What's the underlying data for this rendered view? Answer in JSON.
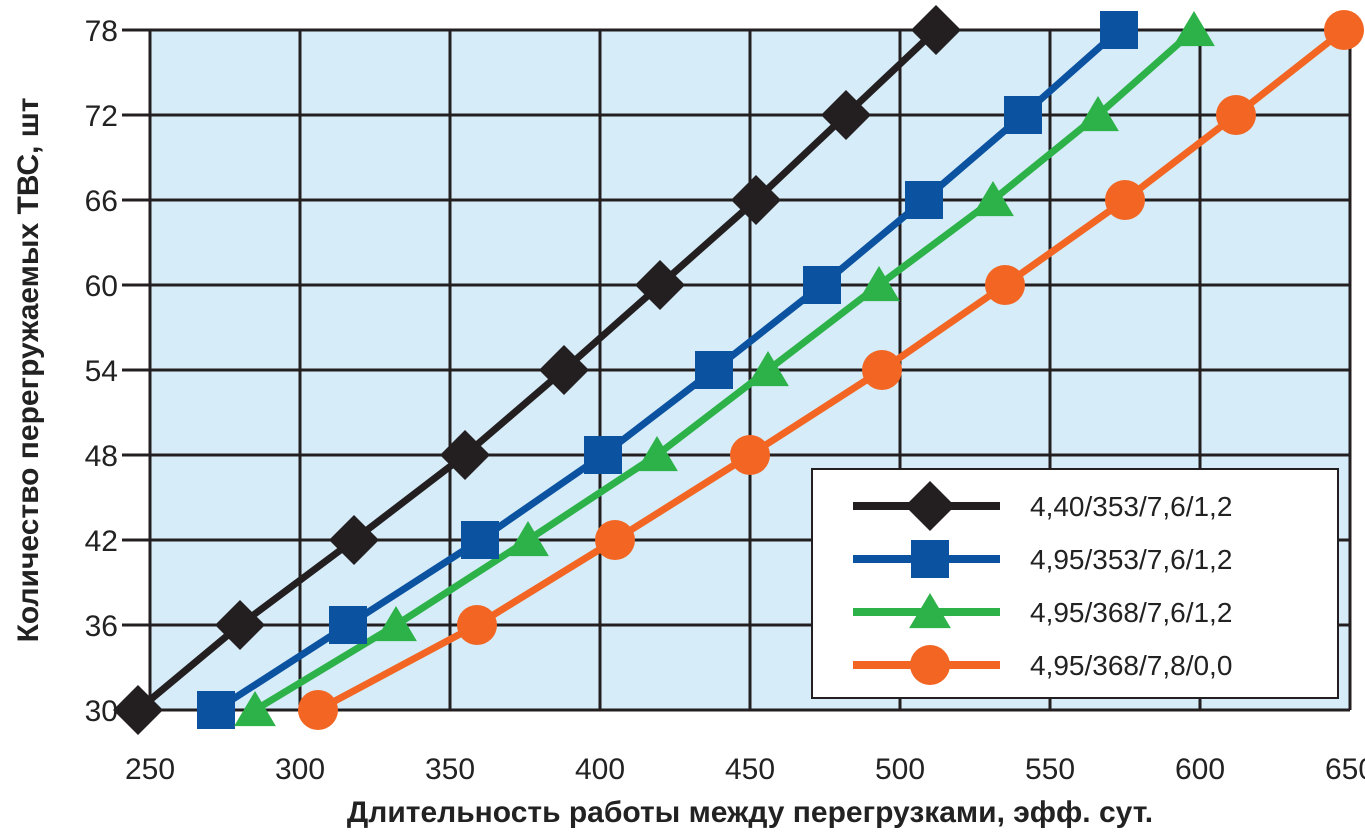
{
  "chart_data": {
    "type": "line",
    "title": "",
    "xlabel": "Длительность работы между перегрузками, эфф. сут.",
    "ylabel": "Количество перегружаемых ТВС, шт",
    "xlim": [
      250,
      650
    ],
    "ylim": [
      30,
      78
    ],
    "xticks": [
      250,
      300,
      350,
      400,
      450,
      500,
      550,
      600,
      650
    ],
    "yticks": [
      30,
      36,
      42,
      48,
      54,
      60,
      66,
      72,
      78
    ],
    "grid": true,
    "legend_position": "bottom-right",
    "background": "#d6ecf8",
    "series": [
      {
        "name": "4,40/353/7,6/1,2",
        "color": "#231f20",
        "marker": "diamond",
        "points": [
          [
            246,
            30
          ],
          [
            280,
            36
          ],
          [
            318,
            42
          ],
          [
            355,
            48
          ],
          [
            388,
            54
          ],
          [
            420,
            60
          ],
          [
            452,
            66
          ],
          [
            482,
            72
          ],
          [
            512,
            78
          ]
        ]
      },
      {
        "name": "4,95/353/7,6/1,2",
        "color": "#0b52a1",
        "marker": "square",
        "points": [
          [
            272,
            30
          ],
          [
            316,
            36
          ],
          [
            360,
            42
          ],
          [
            401,
            48
          ],
          [
            438,
            54
          ],
          [
            474,
            60
          ],
          [
            508,
            66
          ],
          [
            541,
            72
          ],
          [
            573,
            78
          ]
        ]
      },
      {
        "name": "4,95/368/7,6/1,2",
        "color": "#2db24a",
        "marker": "triangle",
        "points": [
          [
            285,
            30
          ],
          [
            332,
            36
          ],
          [
            376,
            42
          ],
          [
            419,
            48
          ],
          [
            456,
            54
          ],
          [
            493,
            60
          ],
          [
            531,
            66
          ],
          [
            566,
            72
          ],
          [
            598,
            78
          ]
        ]
      },
      {
        "name": "4,95/368/7,8/0,0",
        "color": "#f26522",
        "marker": "circle",
        "points": [
          [
            306,
            30
          ],
          [
            359,
            36
          ],
          [
            405,
            42
          ],
          [
            450,
            48
          ],
          [
            494,
            54
          ],
          [
            535,
            60
          ],
          [
            575,
            66
          ],
          [
            612,
            72
          ],
          [
            648,
            78
          ]
        ]
      }
    ]
  }
}
